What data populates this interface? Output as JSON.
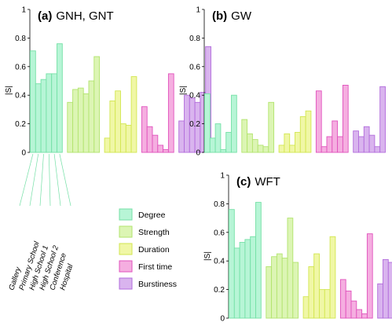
{
  "chart_data": {
    "type": "bar",
    "datasets": [
      "Gallery",
      "Primary School",
      "High School 1",
      "High School 2",
      "Conference",
      "Hospital"
    ],
    "groups": [
      "Degree",
      "Strength",
      "Duration",
      "First time",
      "Burstiness"
    ],
    "colors": {
      "Degree": {
        "fill": "#b7f5d6",
        "stroke": "#74e0a6"
      },
      "Strength": {
        "fill": "#dcf5b4",
        "stroke": "#b2e46e"
      },
      "Duration": {
        "fill": "#f0f7a6",
        "stroke": "#d2e650"
      },
      "First time": {
        "fill": "#f5aee0",
        "stroke": "#e053bd"
      },
      "Burstiness": {
        "fill": "#d9b4ee",
        "stroke": "#b26cdc"
      }
    },
    "ylabel": "|S|",
    "panels": [
      {
        "id": "a",
        "label": "(a)",
        "title": "GNH, GNT",
        "ylim": [
          0,
          1
        ],
        "yticks": [
          "0",
          "0.2",
          "0.4",
          "0.6",
          "0.8",
          "1"
        ],
        "values": {
          "Degree": [
            0.71,
            0.48,
            0.51,
            0.55,
            0.55,
            0.76
          ],
          "Strength": [
            0.35,
            0.44,
            0.45,
            0.41,
            0.5,
            0.67
          ],
          "Duration": [
            0.1,
            0.36,
            0.43,
            0.2,
            0.19,
            0.53
          ],
          "First time": [
            0.32,
            0.18,
            0.12,
            0.05,
            0.02,
            0.55
          ],
          "Burstiness": [
            0.22,
            0.4,
            0.38,
            0.35,
            0.42,
            0.74
          ]
        }
      },
      {
        "id": "b",
        "label": "(b)",
        "title": "GW",
        "ylim": [
          0,
          1
        ],
        "yticks": [
          "0",
          "0.2",
          "0.4",
          "0.6",
          "0.8",
          "1"
        ],
        "values": {
          "Degree": [
            0.41,
            0.1,
            0.2,
            0.02,
            0.14,
            0.4
          ],
          "Strength": [
            0.23,
            0.13,
            0.09,
            0.05,
            0.04,
            0.35
          ],
          "Duration": [
            0.05,
            0.13,
            0.05,
            0.14,
            0.25,
            0.29
          ],
          "First time": [
            0.43,
            0.04,
            0.11,
            0.22,
            0.11,
            0.47
          ],
          "Burstiness": [
            0.15,
            0.11,
            0.18,
            0.12,
            0.04,
            0.46
          ]
        }
      },
      {
        "id": "c",
        "label": "(c)",
        "title": "WFT",
        "ylim": [
          0,
          1
        ],
        "yticks": [
          "0",
          "0.2",
          "0.4",
          "0.6",
          "0.8",
          "1"
        ],
        "values": {
          "Degree": [
            0.76,
            0.49,
            0.53,
            0.55,
            0.57,
            0.81
          ],
          "Strength": [
            0.36,
            0.43,
            0.45,
            0.42,
            0.7,
            0.39
          ],
          "Duration": [
            0.15,
            0.36,
            0.45,
            0.2,
            0.2,
            0.57
          ],
          "First time": [
            0.27,
            0.19,
            0.12,
            0.06,
            0.03,
            0.59
          ],
          "Burstiness": [
            0.24,
            0.41,
            0.39,
            0.35,
            0.43,
            0.76
          ]
        }
      }
    ]
  }
}
